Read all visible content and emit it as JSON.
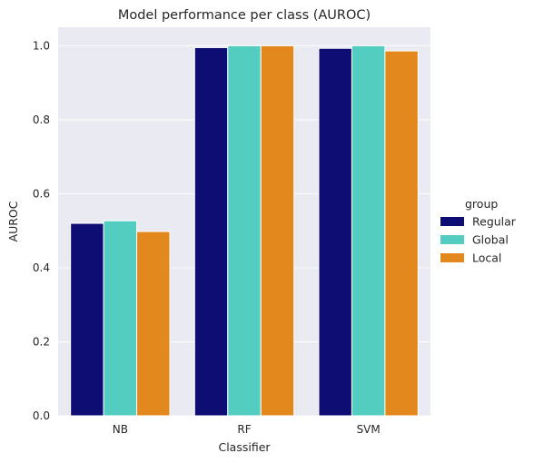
{
  "chart_data": {
    "type": "bar",
    "title": "Model performance per class (AUROC)",
    "xlabel": "Classifier",
    "ylabel": "AUROC",
    "categories": [
      "NB",
      "RF",
      "SVM"
    ],
    "series": [
      {
        "name": "Regular",
        "color": "#0d0d73",
        "values": [
          0.52,
          0.995,
          0.993
        ]
      },
      {
        "name": "Global",
        "color": "#53cdbf",
        "values": [
          0.527,
          1.0,
          1.0
        ]
      },
      {
        "name": "Local",
        "color": "#e3881c",
        "values": [
          0.498,
          1.0,
          0.986
        ]
      }
    ],
    "ylim": [
      0,
      1.05
    ],
    "yticks": [
      "0.0",
      "0.2",
      "0.4",
      "0.6",
      "0.8",
      "1.0"
    ],
    "grid": true,
    "background_color": "#eaeaf2",
    "legend": {
      "title": "group",
      "placement": "right"
    }
  }
}
